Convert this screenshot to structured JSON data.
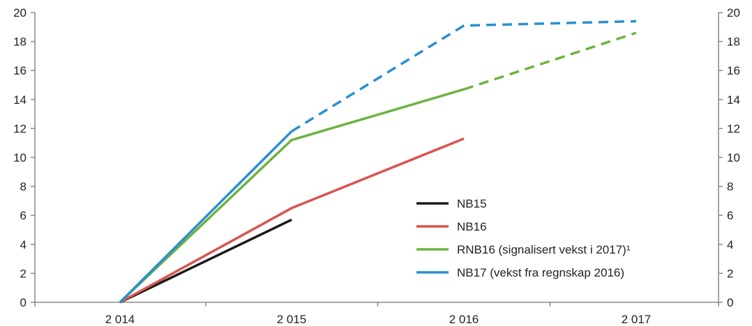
{
  "chart_data": {
    "type": "line",
    "title": "",
    "xlabel": "",
    "ylabel": "",
    "x": [
      "2 014",
      "2 015",
      "2 016",
      "2 017"
    ],
    "ylim": [
      0,
      20
    ],
    "yticks": [
      "0",
      "2",
      "4",
      "6",
      "8",
      "10",
      "12",
      "14",
      "16",
      "18",
      "20"
    ],
    "grid": false,
    "legend_position": "lower-right",
    "series": [
      {
        "name": "NB15",
        "color": "#1a1a1a",
        "points": [
          {
            "x": "2 014",
            "y": 0
          },
          {
            "x": "2 015",
            "y": 5.7
          }
        ],
        "dashed_from_index": null
      },
      {
        "name": "NB16",
        "color": "#d9534f",
        "points": [
          {
            "x": "2 014",
            "y": 0
          },
          {
            "x": "2 015",
            "y": 6.5
          },
          {
            "x": "2 016",
            "y": 11.3
          }
        ],
        "dashed_from_index": null
      },
      {
        "name": "RNB16 (signalisert vekst i 2017)¹",
        "color": "#6cb33f",
        "points": [
          {
            "x": "2 014",
            "y": 0
          },
          {
            "x": "2 015",
            "y": 11.2
          },
          {
            "x": "2 016",
            "y": 14.7
          },
          {
            "x": "2 017",
            "y": 18.6
          }
        ],
        "dashed_from_index": 2
      },
      {
        "name": "NB17 (vekst fra regnskap 2016)",
        "color": "#2b8fd0",
        "points": [
          {
            "x": "2 014",
            "y": 0
          },
          {
            "x": "2 015",
            "y": 11.8
          },
          {
            "x": "2 016",
            "y": 19.1
          },
          {
            "x": "2 017",
            "y": 19.4
          }
        ],
        "dashed_from_index": 1
      }
    ]
  }
}
